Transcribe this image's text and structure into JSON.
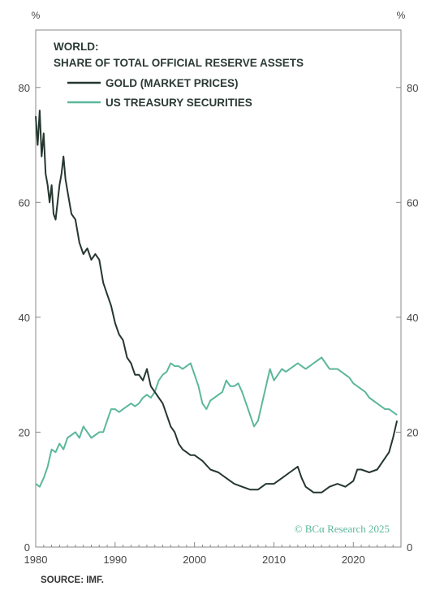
{
  "chart_data": {
    "type": "line",
    "title": "WORLD:",
    "subtitle": "SHARE OF TOTAL OFFICIAL RESERVE ASSETS",
    "y_unit_left": "%",
    "y_unit_right": "%",
    "xlim": [
      1980,
      2026
    ],
    "ylim": [
      0,
      90
    ],
    "x_ticks": [
      1980,
      1990,
      2000,
      2010,
      2020
    ],
    "y_ticks": [
      0,
      20,
      40,
      60,
      80
    ],
    "grid": false,
    "legend_position": "top-left",
    "colors": {
      "gold": "#25372f",
      "ust": "#5cb79c"
    },
    "series": [
      {
        "name": "GOLD (MARKET PRICES)",
        "color": "#25372f",
        "x": [
          1980.0,
          1980.25,
          1980.5,
          1980.75,
          1981.0,
          1981.25,
          1981.5,
          1981.75,
          1982.0,
          1982.25,
          1982.5,
          1982.75,
          1983.0,
          1983.25,
          1983.5,
          1983.75,
          1984.0,
          1984.5,
          1985.0,
          1985.5,
          1986.0,
          1986.5,
          1987.0,
          1987.5,
          1988.0,
          1988.5,
          1989.0,
          1989.5,
          1990.0,
          1990.5,
          1991.0,
          1991.5,
          1992.0,
          1992.5,
          1993.0,
          1993.5,
          1994.0,
          1994.5,
          1995.0,
          1995.5,
          1996.0,
          1996.5,
          1997.0,
          1997.5,
          1998.0,
          1998.5,
          1999.0,
          1999.5,
          2000.0,
          2001.0,
          2002.0,
          2003.0,
          2004.0,
          2005.0,
          2006.0,
          2007.0,
          2008.0,
          2009.0,
          2010.0,
          2011.0,
          2012.0,
          2013.0,
          2013.5,
          2014.0,
          2015.0,
          2016.0,
          2017.0,
          2018.0,
          2019.0,
          2020.0,
          2020.5,
          2021.0,
          2022.0,
          2023.0,
          2024.0,
          2024.5,
          2025.0,
          2025.5
        ],
        "values": [
          75,
          70,
          76,
          68,
          72,
          65,
          63,
          60,
          63,
          58,
          57,
          60,
          63,
          65,
          68,
          64,
          62,
          58,
          57,
          53,
          51,
          52,
          50,
          51,
          50,
          46,
          44,
          42,
          39,
          37,
          36,
          33,
          32,
          30,
          30,
          29,
          31,
          28,
          27,
          26,
          25,
          23,
          21,
          20,
          18,
          17,
          16.5,
          16,
          16,
          15,
          13.5,
          13,
          12,
          11,
          10.5,
          10,
          10,
          11,
          11,
          12,
          13,
          14,
          12,
          10.5,
          9.5,
          9.5,
          10.5,
          11,
          10.5,
          11.5,
          13.5,
          13.5,
          13,
          13.5,
          15.5,
          16.5,
          19,
          22
        ]
      },
      {
        "name": "US TREASURY SECURITIES",
        "color": "#5cb79c",
        "x": [
          1980.0,
          1980.5,
          1981.0,
          1981.5,
          1982.0,
          1982.5,
          1983.0,
          1983.5,
          1984.0,
          1984.5,
          1985.0,
          1985.5,
          1986.0,
          1986.5,
          1987.0,
          1987.5,
          1988.0,
          1988.5,
          1989.0,
          1989.5,
          1990.0,
          1990.5,
          1991.0,
          1991.5,
          1992.0,
          1992.5,
          1993.0,
          1993.5,
          1994.0,
          1994.5,
          1995.0,
          1995.5,
          1996.0,
          1996.5,
          1997.0,
          1997.5,
          1998.0,
          1998.5,
          1999.0,
          1999.5,
          2000.0,
          2000.5,
          2001.0,
          2001.5,
          2002.0,
          2002.5,
          2003.0,
          2003.5,
          2004.0,
          2004.5,
          2005.0,
          2005.5,
          2006.0,
          2006.5,
          2007.0,
          2007.5,
          2008.0,
          2008.5,
          2009.0,
          2009.5,
          2010.0,
          2010.5,
          2011.0,
          2011.5,
          2012.0,
          2012.5,
          2013.0,
          2013.5,
          2014.0,
          2014.5,
          2015.0,
          2015.5,
          2016.0,
          2016.5,
          2017.0,
          2017.5,
          2018.0,
          2018.5,
          2019.0,
          2019.5,
          2020.0,
          2020.5,
          2021.0,
          2021.5,
          2022.0,
          2022.5,
          2023.0,
          2023.5,
          2024.0,
          2024.5,
          2025.0,
          2025.5
        ],
        "values": [
          11,
          10.5,
          12,
          14,
          17,
          16.5,
          18,
          17,
          19,
          19.5,
          20,
          19,
          21,
          20,
          19,
          19.5,
          20,
          20,
          22,
          24,
          24,
          23.5,
          24,
          24.5,
          25,
          24.5,
          25,
          26,
          26.5,
          26,
          27,
          29,
          30,
          30.5,
          32,
          31.5,
          31.5,
          31,
          31.5,
          32,
          30,
          28,
          25,
          24,
          25.5,
          26,
          26.5,
          27,
          29,
          28,
          28,
          28.5,
          27,
          25,
          23,
          21,
          22,
          25,
          28,
          31,
          29,
          30,
          31,
          30.5,
          31,
          31.5,
          32,
          31.5,
          31,
          31.5,
          32,
          32.5,
          33,
          32,
          31,
          31,
          31,
          30.5,
          30,
          29.5,
          28.5,
          28,
          27.5,
          27,
          26,
          25.5,
          25,
          24.5,
          24,
          24,
          23.5,
          23
        ]
      }
    ],
    "watermark": "© BCα Research 2025",
    "source": "SOURCE: IMF."
  }
}
